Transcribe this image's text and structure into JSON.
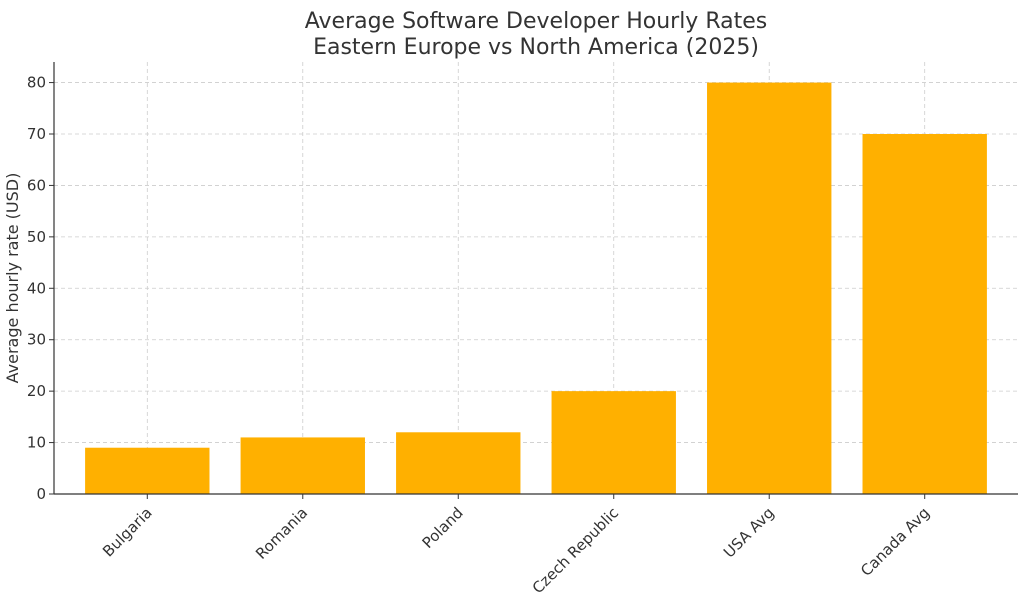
{
  "chart_data": {
    "type": "bar",
    "title": "Average Software Developer Hourly Rates",
    "subtitle": "Eastern Europe vs North America (2025)",
    "xlabel": "",
    "ylabel": "Average hourly rate (USD)",
    "categories": [
      "Bulgaria",
      "Romania",
      "Poland",
      "Czech Republic",
      "USA Avg",
      "Canada Avg"
    ],
    "values": [
      9,
      11,
      12,
      20,
      80,
      70
    ],
    "ylim": [
      0,
      84
    ],
    "yticks": [
      0,
      10,
      20,
      30,
      40,
      50,
      60,
      70,
      80
    ],
    "grid": true,
    "bar_color": "#FFB000",
    "axis_color": "#333333",
    "grid_color": "#cccccc"
  }
}
